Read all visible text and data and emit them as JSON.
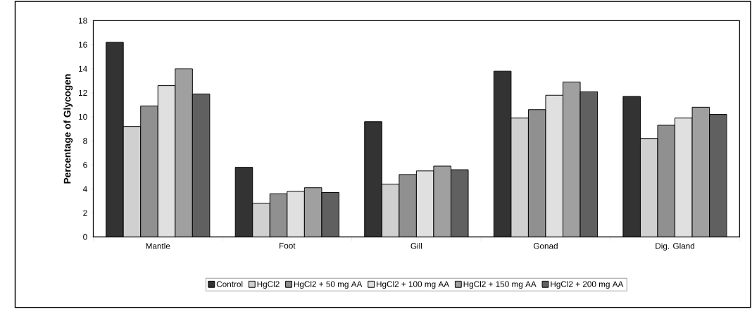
{
  "chart_data": {
    "type": "bar",
    "ylabel": "Percentage of Glycogen",
    "categories": [
      "Mantle",
      "Foot",
      "Gill",
      "Gonad",
      "Dig. Gland"
    ],
    "series": [
      {
        "name": "Control",
        "color": "#333333",
        "values": [
          16.2,
          5.8,
          9.6,
          13.8,
          11.7
        ]
      },
      {
        "name": "HgCl2",
        "color": "#d0d0d0",
        "values": [
          9.2,
          2.8,
          4.4,
          9.9,
          8.2
        ]
      },
      {
        "name": "HgCl2 + 50 mg AA",
        "color": "#909090",
        "values": [
          10.9,
          3.6,
          5.2,
          10.6,
          9.3
        ]
      },
      {
        "name": "HgCl2 + 100 mg AA",
        "color": "#e0e0e0",
        "values": [
          12.6,
          3.8,
          5.5,
          11.8,
          9.9
        ]
      },
      {
        "name": "HgCl2 + 150 mg AA",
        "color": "#a0a0a0",
        "values": [
          14.0,
          4.1,
          5.9,
          12.9,
          10.8
        ]
      },
      {
        "name": "HgCl2 + 200 mg AA",
        "color": "#606060",
        "values": [
          11.9,
          3.7,
          5.6,
          12.1,
          10.2
        ]
      }
    ],
    "ylim": [
      0,
      18
    ],
    "yticks": [
      0,
      2,
      4,
      6,
      8,
      10,
      12,
      14,
      16,
      18
    ],
    "grid": false,
    "legend": "bottom"
  }
}
